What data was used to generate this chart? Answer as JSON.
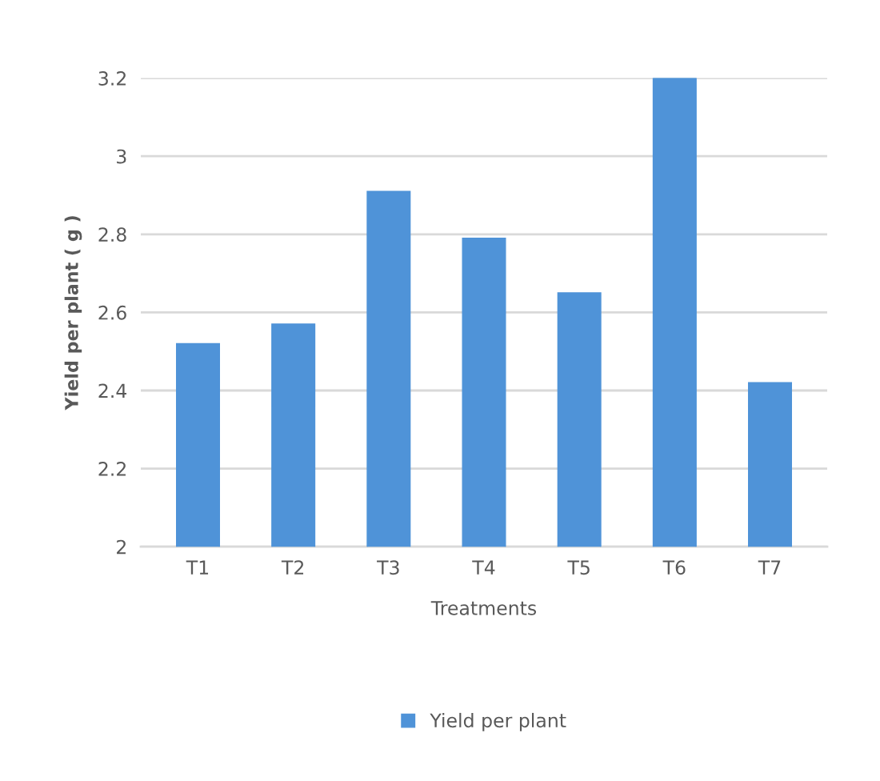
{
  "chart_data": {
    "type": "bar",
    "categories": [
      "T1",
      "T2",
      "T3",
      "T4",
      "T5",
      "T6",
      "T7"
    ],
    "series": [
      {
        "name": "Yield per plant",
        "color": "#4f93d8",
        "values": [
          2.52,
          2.57,
          2.91,
          2.79,
          2.65,
          3.2,
          2.42
        ]
      }
    ],
    "xlabel": "Treatments",
    "ylabel": "Yield per plant ( g )",
    "ylim": [
      2,
      3.2
    ],
    "yticks": [
      2,
      2.2,
      2.4,
      2.6,
      2.8,
      3,
      3.2
    ],
    "grid": "y",
    "legend": "bottom"
  }
}
